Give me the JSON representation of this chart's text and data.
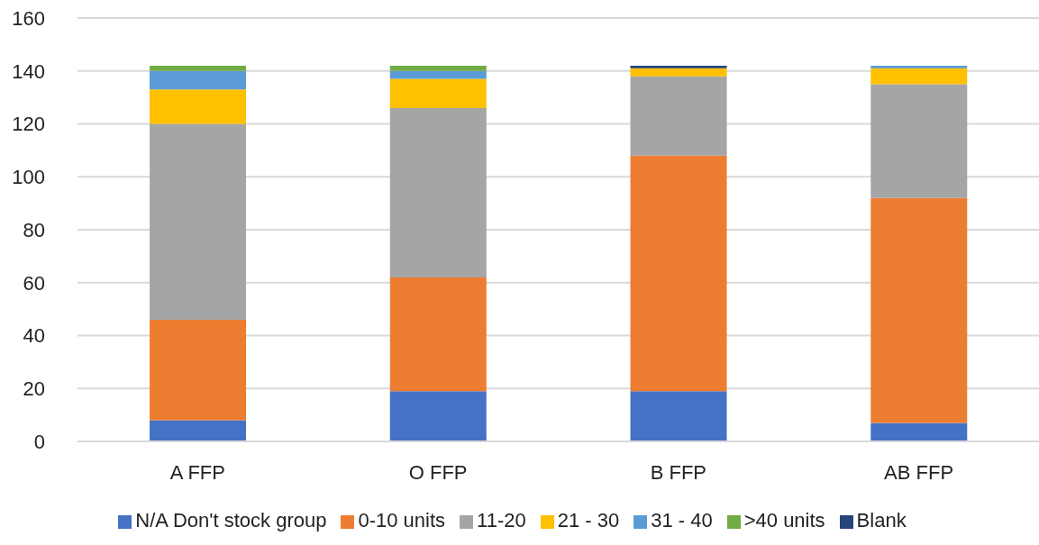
{
  "chart_data": {
    "type": "bar",
    "stacked": true,
    "categories": [
      "A FFP",
      "O FFP",
      "B FFP",
      "AB FFP"
    ],
    "series": [
      {
        "name": "N/A Don't stock group",
        "color": "#4472c4",
        "values": [
          8,
          19,
          19,
          7
        ]
      },
      {
        "name": "0-10 units",
        "color": "#ed7d31",
        "values": [
          38,
          43,
          89,
          85
        ]
      },
      {
        "name": "11-20",
        "color": "#a5a5a5",
        "values": [
          74,
          64,
          30,
          43
        ]
      },
      {
        "name": "21 - 30",
        "color": "#ffc000",
        "values": [
          13,
          11,
          3,
          6
        ]
      },
      {
        "name": "31 - 40",
        "color": "#5b9bd5",
        "values": [
          7,
          3,
          0,
          1
        ]
      },
      {
        "name": ">40 units",
        "color": "#70ad47",
        "values": [
          2,
          2,
          0,
          0
        ]
      },
      {
        "name": "Blank",
        "color": "#264478",
        "values": [
          0,
          0,
          1,
          0
        ]
      }
    ],
    "ylim": [
      0,
      160
    ],
    "yticks": [
      0,
      20,
      40,
      60,
      80,
      100,
      120,
      140,
      160
    ],
    "grid": "y",
    "legend": "bottom"
  }
}
